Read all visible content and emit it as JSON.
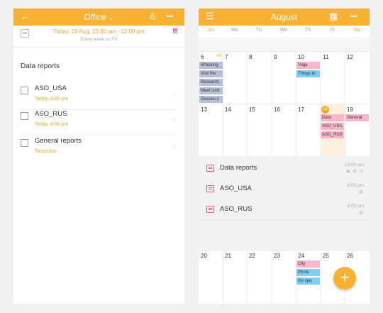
{
  "left": {
    "title": "Office",
    "title_caret": "⌄",
    "back_icon": "←",
    "user_icon": "♙",
    "more_icon": "•••",
    "event": {
      "time": "Today, 18 Aug, 10:00 am - 12:00 pm",
      "repeat": "Every week on Fri",
      "priority": "!!!"
    },
    "section_title": "Data reports",
    "tasks": [
      {
        "name": "ASO_USA",
        "due": "Today, 8:00 pm",
        "star": "☆"
      },
      {
        "name": "ASO_RUS",
        "due": "Today, 8:00 pm",
        "star": "☆"
      },
      {
        "name": "General reports",
        "due": "Tomorrow",
        "star": "☆"
      }
    ]
  },
  "right": {
    "title": "August",
    "menu_icon": "☰",
    "grid_icon": "▦",
    "more_icon": "•••",
    "weekdays": [
      "Su",
      "Mo",
      "Tu",
      "We",
      "Th",
      "Fr",
      "Sa"
    ],
    "week1": {
      "days": [
        "6",
        "7",
        "8",
        "9",
        "10",
        "11",
        "12"
      ],
      "day6_extra": "+6",
      "chips_su": [
        "#Packing",
        "Visit the",
        "Research",
        "Meet cont",
        "Discuss c"
      ],
      "chips_th": [
        "Yoga",
        "Things to"
      ]
    },
    "week2": {
      "days": [
        "13",
        "14",
        "15",
        "16",
        "17",
        "18",
        "19"
      ],
      "chips_fr": [
        "Data",
        "ASO_USA",
        "ASO_RUS"
      ],
      "chips_sa": [
        "General"
      ]
    },
    "details": [
      {
        "name": "Data reports",
        "time": "10:00 am",
        "mini": "▣ ▥ ◷"
      },
      {
        "name": "ASO_USA",
        "time": "8:00 pm",
        "mini": "▥"
      },
      {
        "name": "ASO_RUS",
        "time": "8:00 pm",
        "mini": "▥"
      }
    ],
    "week3": {
      "days": [
        "20",
        "21",
        "22",
        "23",
        "24",
        "25",
        "26"
      ],
      "chips_th": [
        "City",
        "Picnic",
        "Go spa"
      ]
    },
    "fab": "+"
  },
  "colors": {
    "accent": "#f7b133",
    "pink": "#f9b5cb",
    "blue": "#7fcdf0",
    "gray_chip": "#b8c0d8",
    "priority": "#e23b5a"
  }
}
